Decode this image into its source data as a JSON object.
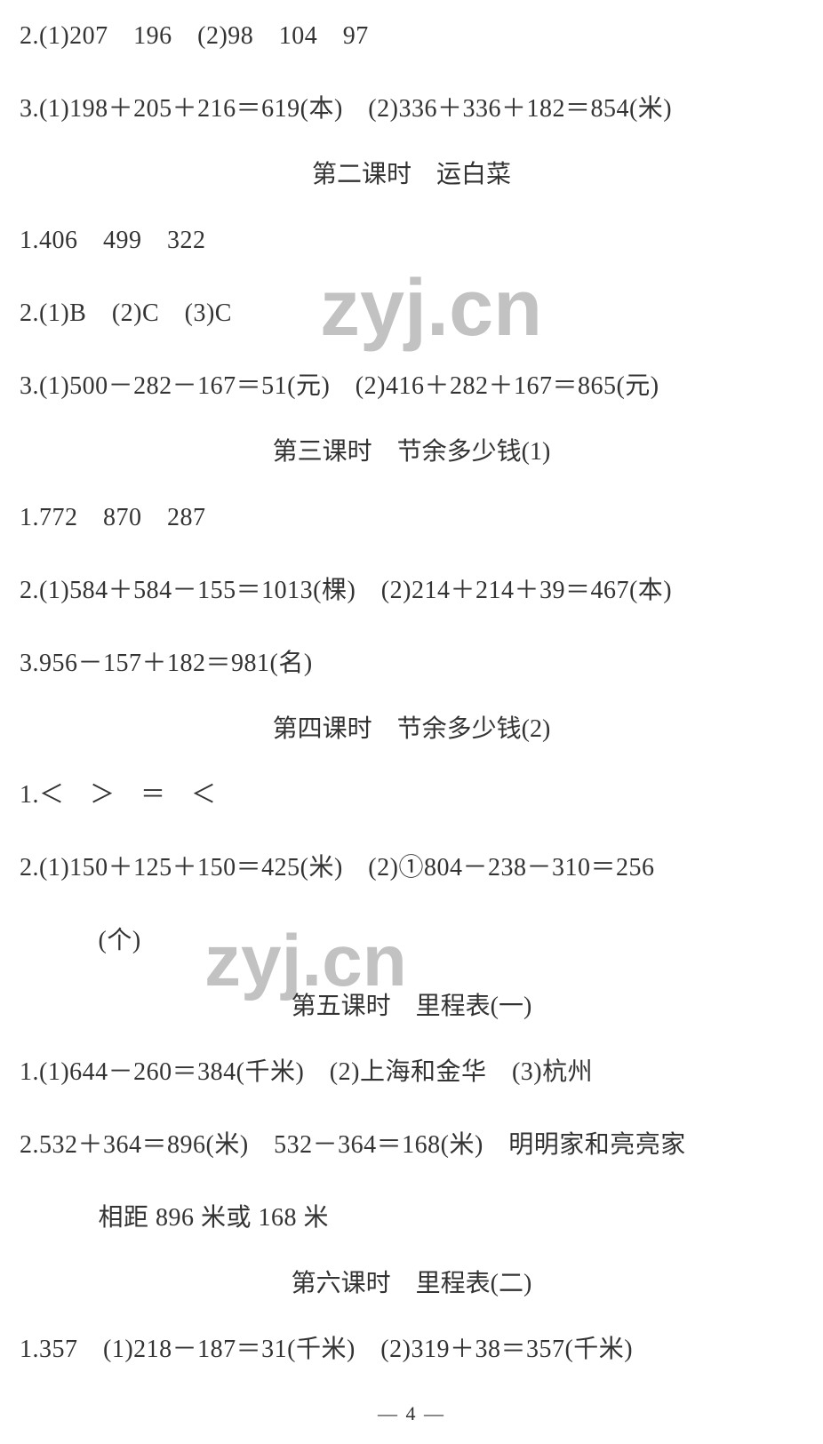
{
  "colors": {
    "text": "#333333",
    "background": "#ffffff",
    "watermark": "rgba(80,80,80,0.35)"
  },
  "typography": {
    "body_font_family": "SimSun / 宋体 (serif)",
    "body_font_size_pt": 21,
    "heading_font_size_pt": 21,
    "watermark_font_family": "Arial / sans-serif",
    "watermark_font_size_pt": 68
  },
  "top_lines": {
    "l1": "2.(1)207　196　(2)98　104　97",
    "l2": "3.(1)198＋205＋216＝619(本)　(2)336＋336＋182＝854(米)"
  },
  "sections": [
    {
      "heading": "第二课时　运白菜",
      "lines": [
        "1.406　499　322",
        "2.(1)B　(2)C　(3)C",
        "3.(1)500－282－167＝51(元)　(2)416＋282＋167＝865(元)"
      ]
    },
    {
      "heading": "第三课时　节余多少钱(1)",
      "lines": [
        "1.772　870　287",
        "2.(1)584＋584－155＝1013(棵)　(2)214＋214＋39＝467(本)",
        "3.956－157＋182＝981(名)"
      ]
    },
    {
      "heading": "第四课时　节余多少钱(2)",
      "lines": [
        "1.＜　＞　＝　＜",
        "2.(1)150＋125＋150＝425(米)　(2)①804－238－310＝256",
        "　(个)"
      ]
    },
    {
      "heading": "第五课时　里程表(一)",
      "lines": [
        "1.(1)644－260＝384(千米)　(2)上海和金华　(3)杭州",
        "2.532＋364＝896(米)　532－364＝168(米)　明明家和亮亮家",
        "　相距 896 米或 168 米"
      ]
    },
    {
      "heading": "第六课时　里程表(二)",
      "lines": [
        "1.357　(1)218－187＝31(千米)　(2)319＋38＝357(千米)"
      ]
    }
  ],
  "page_number_label": "— 4 —",
  "watermark_text": "zyj.cn"
}
